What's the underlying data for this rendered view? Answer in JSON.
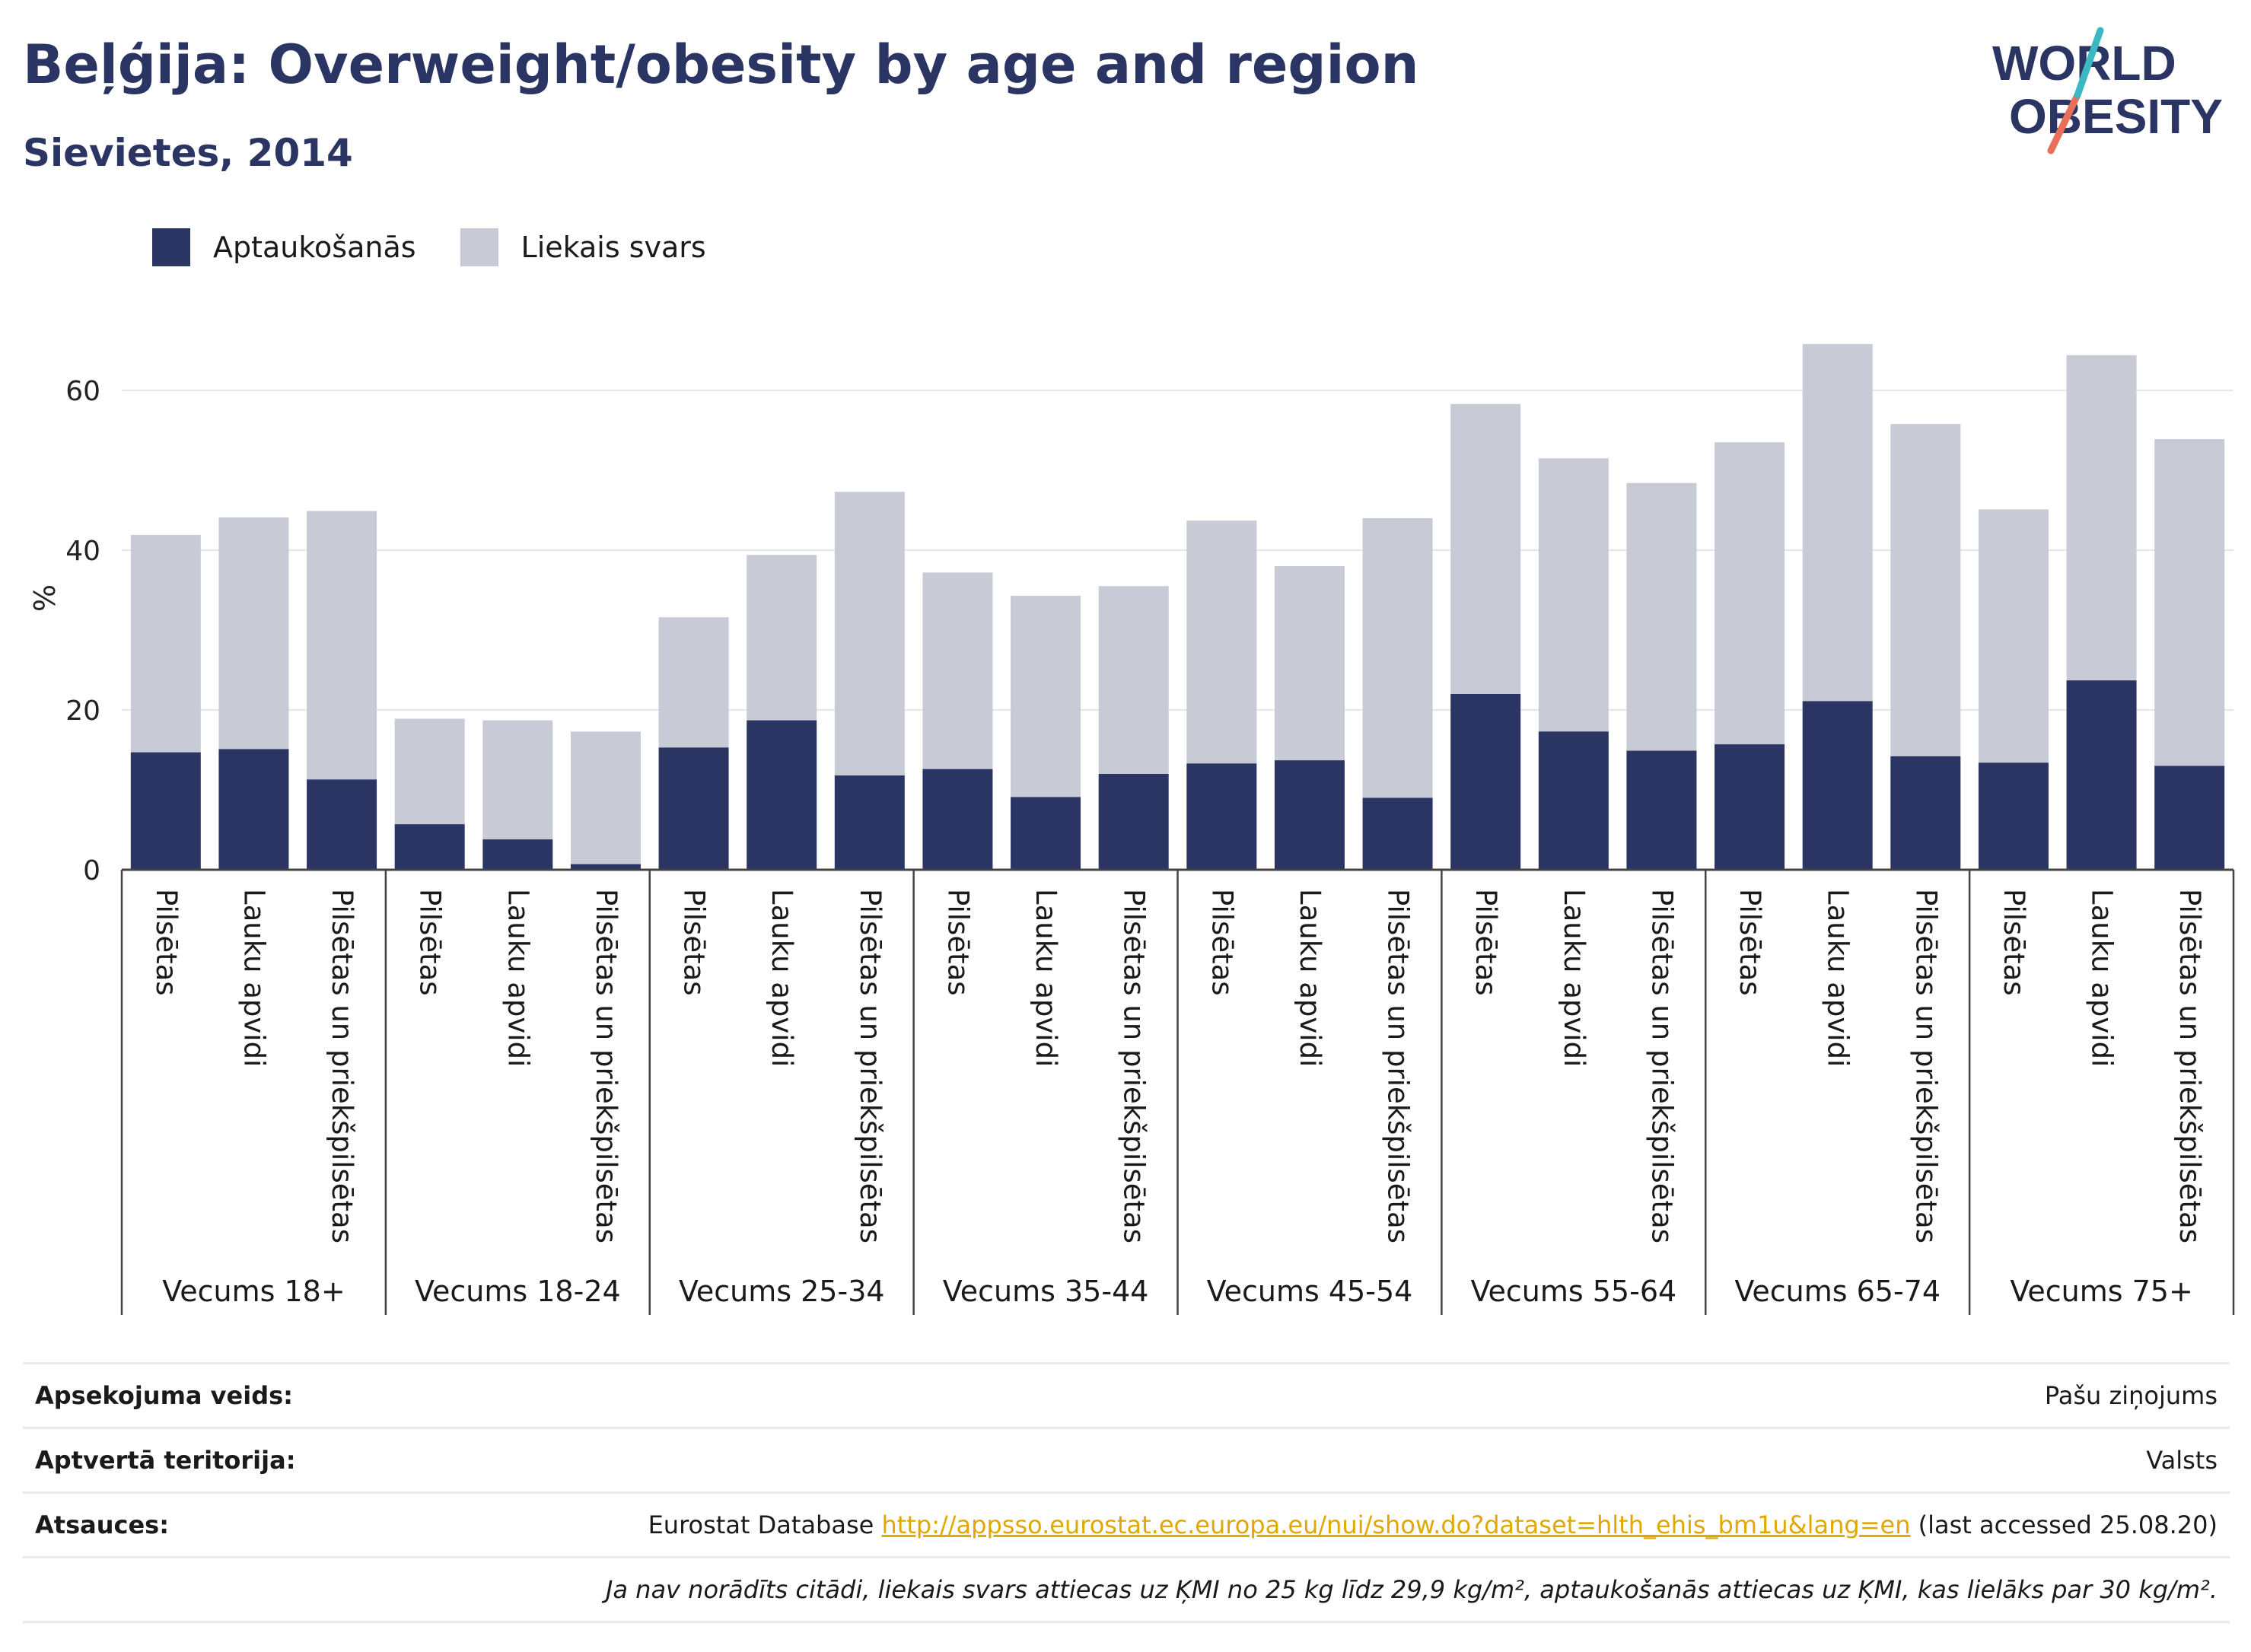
{
  "header": {
    "title": "Beļģija: Overweight/obesity by age and region",
    "subtitle": "Sievietes, 2014"
  },
  "logo": {
    "line1": "WORLD",
    "line2": "OBESITY"
  },
  "colors": {
    "obesity": "#2a3563",
    "overweight": "#c8cad6",
    "title": "#2a3563",
    "link": "#e0a800",
    "logo_teal": "#3bb8c4",
    "logo_red": "#e8705a"
  },
  "chart_data": {
    "type": "bar",
    "stacked": true,
    "ylabel": "%",
    "ylim": [
      0,
      70
    ],
    "yticks": [
      0,
      20,
      40,
      60
    ],
    "grid": true,
    "legend_position": "top-left",
    "series": [
      {
        "name": "Aptaukošanās",
        "color": "#2a3563"
      },
      {
        "name": "Liekais svars",
        "color": "#c8cad6"
      }
    ],
    "groups": [
      {
        "label": "Vecums 18+",
        "bars": [
          {
            "category": "Pilsētas",
            "obesity": 14.7,
            "total": 41.9
          },
          {
            "category": "Lauku apvidi",
            "obesity": 15.1,
            "total": 44.1
          },
          {
            "category": "Pilsētas un priekšpilsētas",
            "obesity": 11.3,
            "total": 44.9
          }
        ]
      },
      {
        "label": "Vecums 18-24",
        "bars": [
          {
            "category": "Pilsētas",
            "obesity": 5.7,
            "total": 18.9
          },
          {
            "category": "Lauku apvidi",
            "obesity": 3.8,
            "total": 18.7
          },
          {
            "category": "Pilsētas un priekšpilsētas",
            "obesity": 0.7,
            "total": 17.3
          }
        ]
      },
      {
        "label": "Vecums 25-34",
        "bars": [
          {
            "category": "Pilsētas",
            "obesity": 15.3,
            "total": 31.6
          },
          {
            "category": "Lauku apvidi",
            "obesity": 18.7,
            "total": 39.4
          },
          {
            "category": "Pilsētas un priekšpilsētas",
            "obesity": 11.8,
            "total": 47.3
          }
        ]
      },
      {
        "label": "Vecums 35-44",
        "bars": [
          {
            "category": "Pilsētas",
            "obesity": 12.6,
            "total": 37.2
          },
          {
            "category": "Lauku apvidi",
            "obesity": 9.1,
            "total": 34.3
          },
          {
            "category": "Pilsētas un priekšpilsētas",
            "obesity": 12.0,
            "total": 35.5
          }
        ]
      },
      {
        "label": "Vecums 45-54",
        "bars": [
          {
            "category": "Pilsētas",
            "obesity": 13.3,
            "total": 43.7
          },
          {
            "category": "Lauku apvidi",
            "obesity": 13.7,
            "total": 38.0
          },
          {
            "category": "Pilsētas un priekšpilsētas",
            "obesity": 9.0,
            "total": 44.0
          }
        ]
      },
      {
        "label": "Vecums 55-64",
        "bars": [
          {
            "category": "Pilsētas",
            "obesity": 22.0,
            "total": 58.3
          },
          {
            "category": "Lauku apvidi",
            "obesity": 17.3,
            "total": 51.5
          },
          {
            "category": "Pilsētas un priekšpilsētas",
            "obesity": 14.9,
            "total": 48.4
          }
        ]
      },
      {
        "label": "Vecums 65-74",
        "bars": [
          {
            "category": "Pilsētas",
            "obesity": 15.7,
            "total": 53.5
          },
          {
            "category": "Lauku apvidi",
            "obesity": 21.1,
            "total": 65.8
          },
          {
            "category": "Pilsētas un priekšpilsētas",
            "obesity": 14.2,
            "total": 55.8
          }
        ]
      },
      {
        "label": "Vecums 75+",
        "bars": [
          {
            "category": "Pilsētas",
            "obesity": 13.4,
            "total": 45.1
          },
          {
            "category": "Lauku apvidi",
            "obesity": 23.7,
            "total": 64.4
          },
          {
            "category": "Pilsētas un priekšpilsētas",
            "obesity": 13.0,
            "total": 53.9
          }
        ]
      }
    ]
  },
  "footer": {
    "rows": [
      {
        "label": "Apsekojuma veids:",
        "value": "Pašu ziņojums"
      },
      {
        "label": "Aptvertā teritorija:",
        "value": "Valsts"
      },
      {
        "label": "Atsauces:",
        "source_prefix": "Eurostat Database ",
        "link": "http://appsso.eurostat.ec.europa.eu/nui/show.do?dataset=hlth_ehis_bm1u&lang=en",
        "source_suffix": " (last accessed 25.08.20)"
      }
    ],
    "note": "Ja nav norādīts citādi, liekais svars attiecas uz ĶMI no 25 kg līdz 29,9 kg/m², aptaukošanās attiecas uz ĶMI, kas lielāks par 30 kg/m²."
  }
}
